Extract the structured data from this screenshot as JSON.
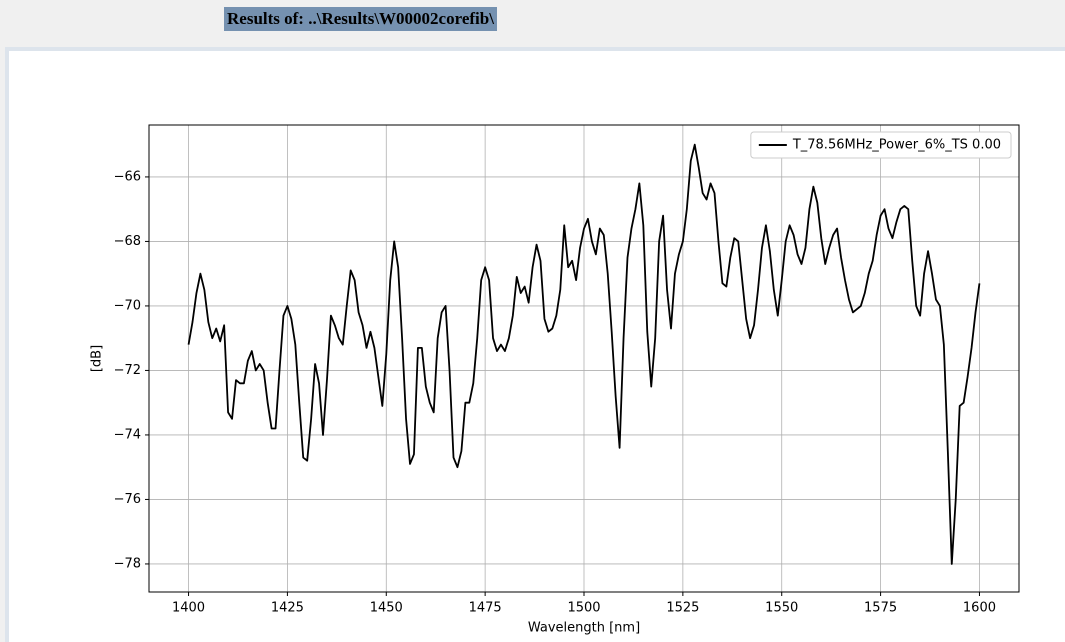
{
  "header": {
    "title": "Results of: ..\\Results\\W00002corefib\\"
  },
  "chart_data": {
    "type": "line",
    "xlabel": "Wavelength [nm]",
    "ylabel": "[dB]",
    "xlim": [
      1390,
      1610
    ],
    "ylim": [
      -78.87,
      -64.39
    ],
    "xticks": [
      1400,
      1425,
      1450,
      1475,
      1500,
      1525,
      1550,
      1575,
      1600
    ],
    "yticks": [
      {
        "value": -78,
        "label": "−78"
      },
      {
        "value": -76,
        "label": "−76"
      },
      {
        "value": -74,
        "label": "−74"
      },
      {
        "value": -72,
        "label": "−72"
      },
      {
        "value": -70,
        "label": "−70"
      },
      {
        "value": -68,
        "label": "−68"
      },
      {
        "value": -66,
        "label": "−66"
      }
    ],
    "grid": true,
    "legend": "upper right",
    "x": [
      1400,
      1401,
      1402,
      1403,
      1404,
      1405,
      1406,
      1407,
      1408,
      1409,
      1410,
      1411,
      1412,
      1413,
      1414,
      1415,
      1416,
      1417,
      1418,
      1419,
      1420,
      1421,
      1422,
      1423,
      1424,
      1425,
      1426,
      1427,
      1428,
      1429,
      1430,
      1431,
      1432,
      1433,
      1434,
      1435,
      1436,
      1437,
      1438,
      1439,
      1440,
      1441,
      1442,
      1443,
      1444,
      1445,
      1446,
      1447,
      1448,
      1449,
      1450,
      1451,
      1452,
      1453,
      1454,
      1455,
      1456,
      1457,
      1458,
      1459,
      1460,
      1461,
      1462,
      1463,
      1464,
      1465,
      1466,
      1467,
      1468,
      1469,
      1470,
      1471,
      1472,
      1473,
      1474,
      1475,
      1476,
      1477,
      1478,
      1479,
      1480,
      1481,
      1482,
      1483,
      1484,
      1485,
      1486,
      1487,
      1488,
      1489,
      1490,
      1491,
      1492,
      1493,
      1494,
      1495,
      1496,
      1497,
      1498,
      1499,
      1500,
      1501,
      1502,
      1503,
      1504,
      1505,
      1506,
      1507,
      1508,
      1509,
      1510,
      1511,
      1512,
      1513,
      1514,
      1515,
      1516,
      1517,
      1518,
      1519,
      1520,
      1521,
      1522,
      1523,
      1524,
      1525,
      1526,
      1527,
      1528,
      1529,
      1530,
      1531,
      1532,
      1533,
      1534,
      1535,
      1536,
      1537,
      1538,
      1539,
      1540,
      1541,
      1542,
      1543,
      1544,
      1545,
      1546,
      1547,
      1548,
      1549,
      1550,
      1551,
      1552,
      1553,
      1554,
      1555,
      1556,
      1557,
      1558,
      1559,
      1560,
      1561,
      1562,
      1563,
      1564,
      1565,
      1566,
      1567,
      1568,
      1569,
      1570,
      1571,
      1572,
      1573,
      1574,
      1575,
      1576,
      1577,
      1578,
      1579,
      1580,
      1581,
      1582,
      1583,
      1584,
      1585,
      1586,
      1587,
      1588,
      1589,
      1590,
      1591,
      1592,
      1593,
      1594,
      1595,
      1596,
      1597,
      1598,
      1599,
      1600
    ],
    "series": [
      {
        "name": "T_78.56MHz_Power_6%_TS 0.00",
        "color": "#000000",
        "values": [
          -71.2,
          -70.5,
          -69.6,
          -69.0,
          -69.5,
          -70.5,
          -71.0,
          -70.7,
          -71.1,
          -70.6,
          -73.3,
          -73.5,
          -72.3,
          -72.4,
          -72.4,
          -71.7,
          -71.4,
          -72.0,
          -71.8,
          -72.0,
          -73.0,
          -73.8,
          -73.8,
          -72.0,
          -70.3,
          -70.0,
          -70.4,
          -71.2,
          -73.0,
          -74.7,
          -74.8,
          -73.5,
          -71.8,
          -72.4,
          -74.0,
          -72.3,
          -70.3,
          -70.6,
          -71.0,
          -71.2,
          -70.0,
          -68.9,
          -69.2,
          -70.2,
          -70.6,
          -71.3,
          -70.8,
          -71.3,
          -72.2,
          -73.1,
          -71.5,
          -69.2,
          -68.0,
          -68.8,
          -71.0,
          -73.5,
          -74.9,
          -74.6,
          -71.3,
          -71.3,
          -72.5,
          -73.0,
          -73.3,
          -71.0,
          -70.2,
          -70.0,
          -72.0,
          -74.7,
          -75.0,
          -74.5,
          -73.0,
          -73.0,
          -72.4,
          -71.0,
          -69.2,
          -68.8,
          -69.2,
          -71.0,
          -71.4,
          -71.2,
          -71.4,
          -71.0,
          -70.3,
          -69.1,
          -69.6,
          -69.4,
          -69.9,
          -68.8,
          -68.1,
          -68.6,
          -70.4,
          -70.8,
          -70.7,
          -70.3,
          -69.5,
          -67.5,
          -68.8,
          -68.6,
          -69.2,
          -68.2,
          -67.6,
          -67.3,
          -68.0,
          -68.4,
          -67.6,
          -67.8,
          -69.0,
          -70.8,
          -72.8,
          -74.4,
          -71.0,
          -68.5,
          -67.6,
          -67.0,
          -66.2,
          -67.5,
          -70.8,
          -72.5,
          -71.0,
          -68.0,
          -67.2,
          -69.5,
          -70.7,
          -69.0,
          -68.4,
          -68.0,
          -67.0,
          -65.5,
          -65.0,
          -65.7,
          -66.5,
          -66.7,
          -66.2,
          -66.5,
          -68.0,
          -69.3,
          -69.4,
          -68.5,
          -67.9,
          -68.0,
          -69.2,
          -70.4,
          -71.0,
          -70.6,
          -69.5,
          -68.2,
          -67.5,
          -68.3,
          -69.5,
          -70.3,
          -69.2,
          -68.0,
          -67.5,
          -67.8,
          -68.4,
          -68.7,
          -68.2,
          -67.0,
          -66.3,
          -66.8,
          -67.9,
          -68.7,
          -68.2,
          -67.8,
          -67.6,
          -68.5,
          -69.2,
          -69.8,
          -70.2,
          -70.1,
          -70.0,
          -69.6,
          -69.0,
          -68.6,
          -67.8,
          -67.2,
          -67.0,
          -67.6,
          -67.9,
          -67.4,
          -67.0,
          -66.9,
          -67.0,
          -68.6,
          -70.0,
          -70.3,
          -69.0,
          -68.3,
          -69.0,
          -69.8,
          -70.0,
          -71.2,
          -74.5,
          -78.0,
          -76.0,
          -73.1,
          -73.0,
          -72.2,
          -71.3,
          -70.2,
          -69.3
        ]
      }
    ]
  }
}
